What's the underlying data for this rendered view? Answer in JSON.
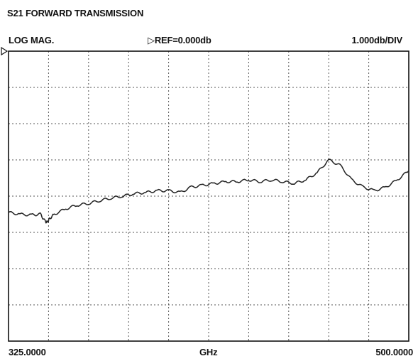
{
  "header": {
    "title": "S21 FORWARD TRANSMISSION",
    "format": "LOG MAG.",
    "reference": "REF=0.000db",
    "scale": "1.000db/DIV"
  },
  "footer": {
    "start": "325.0000",
    "unit": "GHz",
    "end": "500.0000"
  },
  "chart_data": {
    "type": "line",
    "title": "S21 FORWARD TRANSMISSION",
    "xlabel": "GHz",
    "ylabel": "",
    "xlim": [
      325,
      500
    ],
    "ylim": [
      -8,
      0
    ],
    "grid": true,
    "divisions": {
      "x": 10,
      "y": 8
    },
    "series": [
      {
        "x": [
          325,
          330,
          335,
          339,
          341,
          342,
          343,
          345,
          350,
          355,
          360,
          365,
          370,
          375,
          380,
          385,
          390,
          395,
          400,
          405,
          410,
          415,
          420,
          425,
          430,
          435,
          440,
          445,
          450,
          455,
          460,
          465,
          470,
          475,
          480,
          485,
          490,
          495,
          500
        ],
        "y": [
          -4.45,
          -4.5,
          -4.52,
          -4.5,
          -4.7,
          -4.72,
          -4.62,
          -4.5,
          -4.35,
          -4.25,
          -4.2,
          -4.12,
          -4.05,
          -4.0,
          -3.93,
          -3.9,
          -3.85,
          -3.85,
          -3.9,
          -3.75,
          -3.7,
          -3.65,
          -3.6,
          -3.6,
          -3.55,
          -3.6,
          -3.55,
          -3.6,
          -3.65,
          -3.55,
          -3.35,
          -3.0,
          -3.15,
          -3.55,
          -3.75,
          -3.85,
          -3.75,
          -3.55,
          -3.3
        ]
      }
    ]
  }
}
